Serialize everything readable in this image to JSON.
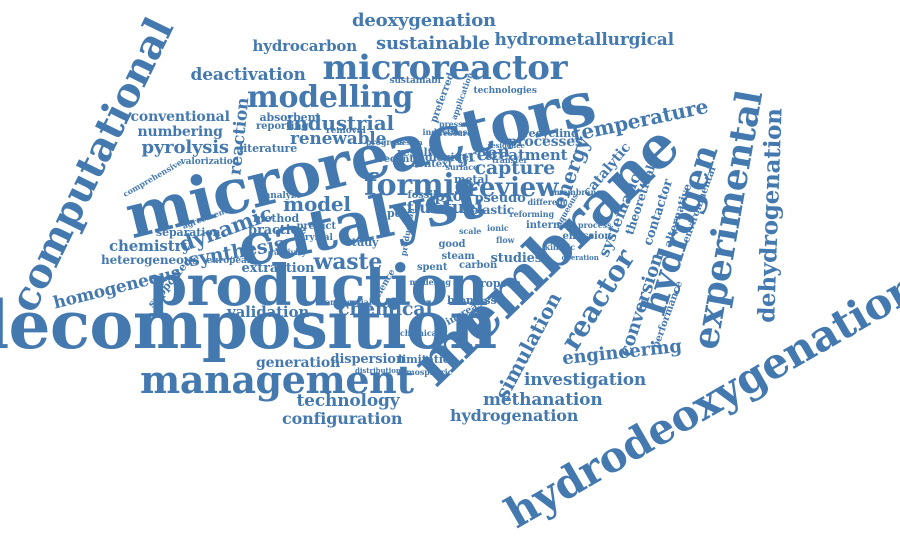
{
  "word_color": "#4479b0",
  "background_color": "#ffffff",
  "words": [
    "decomposition",
    "microreactors",
    "membrane",
    "catalyst",
    "production",
    "hydrodeoxygenation",
    "computational",
    "management",
    "experimental",
    "hydrogen",
    "microreactor",
    "modelling",
    "dehydrogenation",
    "reactor",
    "formic",
    "review",
    "temperature",
    "simulation",
    "deactivation",
    "sustainable",
    "deoxygenation",
    "hydrometallurgical",
    "hydrocarbon",
    "industrial",
    "renewable",
    "conventional",
    "numbering",
    "pyrolysis",
    "reaction",
    "energy",
    "model",
    "dynamic",
    "chemistry",
    "heterogeneous",
    "homogeneous",
    "synthesis",
    "separation",
    "waste",
    "fuel",
    "fluid",
    "capture",
    "green",
    "treatment",
    "processes",
    "systematic",
    "conversion",
    "engineering",
    "investigation",
    "methanation",
    "hydrogenation",
    "technology",
    "configuration",
    "validation",
    "chemical",
    "generation",
    "dispersion",
    "limitation",
    "extraction",
    "supported",
    "studies",
    "contactor",
    "theoretical",
    "environmental",
    "catalytic",
    "alternative",
    "performance",
    "absorbent",
    "reporting",
    "literature",
    "valorization",
    "comprehensive",
    "recent",
    "result",
    "context",
    "dioxide",
    "practice",
    "predict",
    "crystal",
    "method",
    "study",
    "plastic",
    "pseudo",
    "recycling",
    "technologies",
    "preferred",
    "emission",
    "internal",
    "biomass",
    "tropsch",
    "increase",
    "carbon",
    "spent",
    "good",
    "steam",
    "european",
    "agreement",
    "analyze",
    "commercial",
    "distribution",
    "atmospheric",
    "application",
    "sustainabl",
    "industries",
    "research",
    "pressure",
    "removal",
    "transfer",
    "residence",
    "progress",
    "design",
    "proc",
    "pd/c",
    "metal",
    "surface",
    "fossil",
    "activity",
    "science",
    "modeling",
    "operation",
    "membranes",
    "different",
    "aqueous",
    "reforming",
    "kinetic",
    "ionic",
    "scale",
    "flow",
    "process",
    "chemicals",
    "production"
  ]
}
